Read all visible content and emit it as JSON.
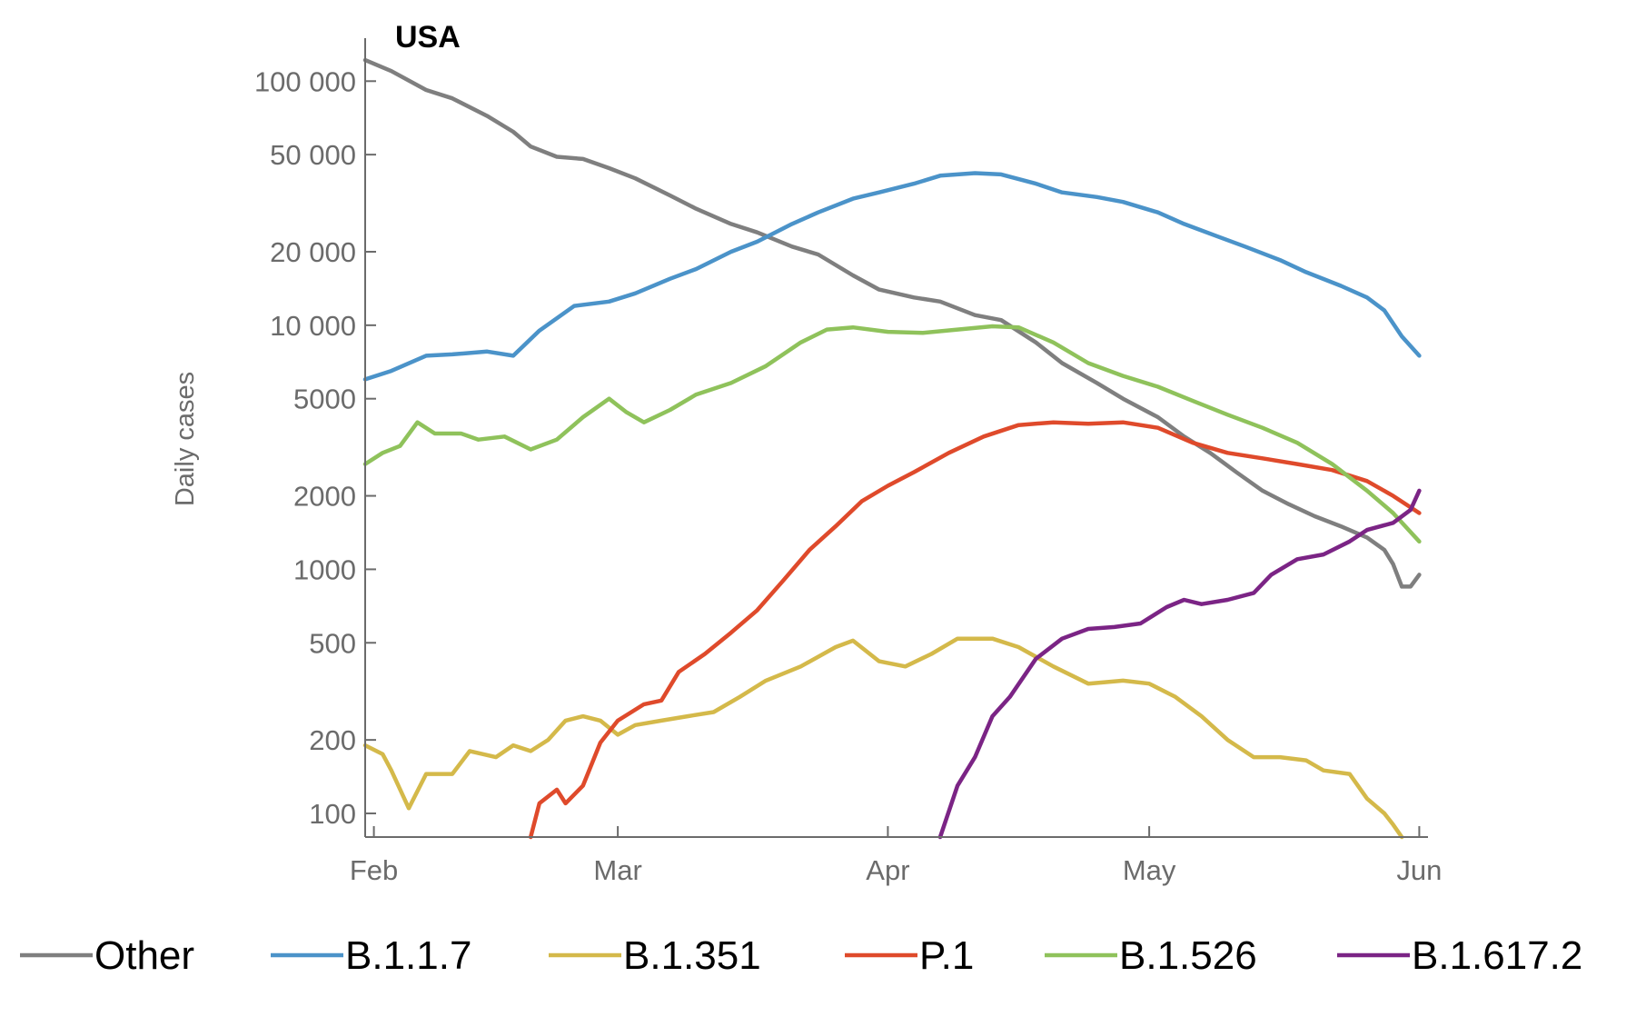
{
  "chart_data": {
    "type": "line",
    "title": "USA",
    "xlabel": "",
    "ylabel": "Daily cases",
    "yscale": "log",
    "ylim": [
      80,
      150000
    ],
    "xlim": [
      "2021-01-31",
      "2021-06-02"
    ],
    "grid": false,
    "legend": "bottom",
    "x_ticks": [
      {
        "date": "2021-02-01",
        "label": "Feb"
      },
      {
        "date": "2021-03-01",
        "label": "Mar"
      },
      {
        "date": "2021-04-01",
        "label": "Apr"
      },
      {
        "date": "2021-05-01",
        "label": "May"
      },
      {
        "date": "2021-06-01",
        "label": "Jun"
      }
    ],
    "y_ticks": [
      {
        "value": 100,
        "label": "100"
      },
      {
        "value": 200,
        "label": "200"
      },
      {
        "value": 500,
        "label": "500"
      },
      {
        "value": 1000,
        "label": "1000"
      },
      {
        "value": 2000,
        "label": "2000"
      },
      {
        "value": 5000,
        "label": "5000"
      },
      {
        "value": 10000,
        "label": "10 000"
      },
      {
        "value": 20000,
        "label": "20 000"
      },
      {
        "value": 50000,
        "label": "50 000"
      },
      {
        "value": 100000,
        "label": "100 000"
      }
    ],
    "series": [
      {
        "name": "Other",
        "color": "#7f7f7f",
        "points": [
          [
            "2021-01-31",
            122000
          ],
          [
            "2021-02-03",
            110000
          ],
          [
            "2021-02-07",
            92000
          ],
          [
            "2021-02-10",
            85000
          ],
          [
            "2021-02-14",
            72000
          ],
          [
            "2021-02-17",
            62000
          ],
          [
            "2021-02-19",
            54000
          ],
          [
            "2021-02-22",
            49000
          ],
          [
            "2021-02-25",
            48000
          ],
          [
            "2021-02-28",
            44000
          ],
          [
            "2021-03-03",
            40000
          ],
          [
            "2021-03-07",
            34000
          ],
          [
            "2021-03-10",
            30000
          ],
          [
            "2021-03-14",
            26000
          ],
          [
            "2021-03-17",
            24000
          ],
          [
            "2021-03-21",
            21000
          ],
          [
            "2021-03-24",
            19500
          ],
          [
            "2021-03-28",
            16000
          ],
          [
            "2021-03-31",
            14000
          ],
          [
            "2021-04-04",
            13000
          ],
          [
            "2021-04-07",
            12500
          ],
          [
            "2021-04-11",
            11000
          ],
          [
            "2021-04-14",
            10500
          ],
          [
            "2021-04-18",
            8500
          ],
          [
            "2021-04-21",
            7000
          ],
          [
            "2021-04-25",
            5800
          ],
          [
            "2021-04-28",
            5000
          ],
          [
            "2021-05-02",
            4200
          ],
          [
            "2021-05-05",
            3500
          ],
          [
            "2021-05-08",
            3000
          ],
          [
            "2021-05-11",
            2500
          ],
          [
            "2021-05-14",
            2100
          ],
          [
            "2021-05-17",
            1850
          ],
          [
            "2021-05-20",
            1650
          ],
          [
            "2021-05-23",
            1500
          ],
          [
            "2021-05-26",
            1350
          ],
          [
            "2021-05-28",
            1200
          ],
          [
            "2021-05-29",
            1050
          ],
          [
            "2021-05-30",
            850
          ],
          [
            "2021-05-31",
            850
          ],
          [
            "2021-06-01",
            950
          ]
        ]
      },
      {
        "name": "B.1.1.7",
        "color": "#4b93c9",
        "points": [
          [
            "2021-01-31",
            6000
          ],
          [
            "2021-02-03",
            6500
          ],
          [
            "2021-02-07",
            7500
          ],
          [
            "2021-02-10",
            7600
          ],
          [
            "2021-02-14",
            7800
          ],
          [
            "2021-02-17",
            7500
          ],
          [
            "2021-02-20",
            9500
          ],
          [
            "2021-02-24",
            12000
          ],
          [
            "2021-02-28",
            12500
          ],
          [
            "2021-03-03",
            13500
          ],
          [
            "2021-03-07",
            15500
          ],
          [
            "2021-03-10",
            17000
          ],
          [
            "2021-03-14",
            20000
          ],
          [
            "2021-03-17",
            22000
          ],
          [
            "2021-03-21",
            26000
          ],
          [
            "2021-03-24",
            29000
          ],
          [
            "2021-03-28",
            33000
          ],
          [
            "2021-03-31",
            35000
          ],
          [
            "2021-04-04",
            38000
          ],
          [
            "2021-04-07",
            41000
          ],
          [
            "2021-04-11",
            42000
          ],
          [
            "2021-04-14",
            41500
          ],
          [
            "2021-04-18",
            38000
          ],
          [
            "2021-04-21",
            35000
          ],
          [
            "2021-04-25",
            33500
          ],
          [
            "2021-04-28",
            32000
          ],
          [
            "2021-05-02",
            29000
          ],
          [
            "2021-05-05",
            26000
          ],
          [
            "2021-05-09",
            23000
          ],
          [
            "2021-05-12",
            21000
          ],
          [
            "2021-05-16",
            18500
          ],
          [
            "2021-05-19",
            16500
          ],
          [
            "2021-05-23",
            14500
          ],
          [
            "2021-05-26",
            13000
          ],
          [
            "2021-05-28",
            11500
          ],
          [
            "2021-05-30",
            9000
          ],
          [
            "2021-06-01",
            7500
          ]
        ]
      },
      {
        "name": "B.1.351",
        "color": "#d4b94a",
        "points": [
          [
            "2021-01-31",
            190
          ],
          [
            "2021-02-02",
            175
          ],
          [
            "2021-02-03",
            150
          ],
          [
            "2021-02-05",
            105
          ],
          [
            "2021-02-07",
            145
          ],
          [
            "2021-02-10",
            145
          ],
          [
            "2021-02-12",
            180
          ],
          [
            "2021-02-15",
            170
          ],
          [
            "2021-02-17",
            190
          ],
          [
            "2021-02-19",
            180
          ],
          [
            "2021-02-21",
            200
          ],
          [
            "2021-02-23",
            240
          ],
          [
            "2021-02-25",
            250
          ],
          [
            "2021-02-27",
            240
          ],
          [
            "2021-03-01",
            210
          ],
          [
            "2021-03-03",
            230
          ],
          [
            "2021-03-06",
            240
          ],
          [
            "2021-03-09",
            250
          ],
          [
            "2021-03-12",
            260
          ],
          [
            "2021-03-15",
            300
          ],
          [
            "2021-03-18",
            350
          ],
          [
            "2021-03-22",
            400
          ],
          [
            "2021-03-26",
            480
          ],
          [
            "2021-03-28",
            510
          ],
          [
            "2021-03-31",
            420
          ],
          [
            "2021-04-03",
            400
          ],
          [
            "2021-04-06",
            450
          ],
          [
            "2021-04-09",
            520
          ],
          [
            "2021-04-13",
            520
          ],
          [
            "2021-04-16",
            480
          ],
          [
            "2021-04-20",
            400
          ],
          [
            "2021-04-24",
            340
          ],
          [
            "2021-04-28",
            350
          ],
          [
            "2021-05-01",
            340
          ],
          [
            "2021-05-04",
            300
          ],
          [
            "2021-05-07",
            250
          ],
          [
            "2021-05-10",
            200
          ],
          [
            "2021-05-13",
            170
          ],
          [
            "2021-05-16",
            170
          ],
          [
            "2021-05-19",
            165
          ],
          [
            "2021-05-21",
            150
          ],
          [
            "2021-05-24",
            145
          ],
          [
            "2021-05-26",
            115
          ],
          [
            "2021-05-28",
            100
          ],
          [
            "2021-05-29",
            90
          ],
          [
            "2021-05-30",
            80
          ]
        ]
      },
      {
        "name": "P.1",
        "color": "#df4a2b",
        "points": [
          [
            "2021-02-19",
            80
          ],
          [
            "2021-02-20",
            110
          ],
          [
            "2021-02-22",
            125
          ],
          [
            "2021-02-23",
            110
          ],
          [
            "2021-02-25",
            130
          ],
          [
            "2021-02-27",
            195
          ],
          [
            "2021-03-01",
            240
          ],
          [
            "2021-03-04",
            280
          ],
          [
            "2021-03-06",
            290
          ],
          [
            "2021-03-08",
            380
          ],
          [
            "2021-03-11",
            450
          ],
          [
            "2021-03-14",
            550
          ],
          [
            "2021-03-17",
            680
          ],
          [
            "2021-03-20",
            900
          ],
          [
            "2021-03-23",
            1200
          ],
          [
            "2021-03-26",
            1500
          ],
          [
            "2021-03-29",
            1900
          ],
          [
            "2021-04-01",
            2200
          ],
          [
            "2021-04-04",
            2500
          ],
          [
            "2021-04-08",
            3000
          ],
          [
            "2021-04-12",
            3500
          ],
          [
            "2021-04-16",
            3900
          ],
          [
            "2021-04-20",
            4000
          ],
          [
            "2021-04-24",
            3950
          ],
          [
            "2021-04-28",
            4000
          ],
          [
            "2021-05-02",
            3800
          ],
          [
            "2021-05-06",
            3300
          ],
          [
            "2021-05-10",
            3000
          ],
          [
            "2021-05-14",
            2850
          ],
          [
            "2021-05-18",
            2700
          ],
          [
            "2021-05-22",
            2550
          ],
          [
            "2021-05-26",
            2300
          ],
          [
            "2021-05-29",
            2000
          ],
          [
            "2021-06-01",
            1700
          ]
        ]
      },
      {
        "name": "B.1.526",
        "color": "#8fc25b",
        "points": [
          [
            "2021-01-31",
            2700
          ],
          [
            "2021-02-02",
            3000
          ],
          [
            "2021-02-04",
            3200
          ],
          [
            "2021-02-06",
            4000
          ],
          [
            "2021-02-08",
            3600
          ],
          [
            "2021-02-11",
            3600
          ],
          [
            "2021-02-13",
            3400
          ],
          [
            "2021-02-16",
            3500
          ],
          [
            "2021-02-19",
            3100
          ],
          [
            "2021-02-22",
            3400
          ],
          [
            "2021-02-25",
            4200
          ],
          [
            "2021-02-28",
            5000
          ],
          [
            "2021-03-02",
            4400
          ],
          [
            "2021-03-04",
            4000
          ],
          [
            "2021-03-07",
            4500
          ],
          [
            "2021-03-10",
            5200
          ],
          [
            "2021-03-14",
            5800
          ],
          [
            "2021-03-18",
            6800
          ],
          [
            "2021-03-22",
            8500
          ],
          [
            "2021-03-25",
            9600
          ],
          [
            "2021-03-28",
            9800
          ],
          [
            "2021-04-01",
            9400
          ],
          [
            "2021-04-05",
            9300
          ],
          [
            "2021-04-09",
            9600
          ],
          [
            "2021-04-13",
            9900
          ],
          [
            "2021-04-16",
            9800
          ],
          [
            "2021-04-20",
            8500
          ],
          [
            "2021-04-24",
            7000
          ],
          [
            "2021-04-28",
            6200
          ],
          [
            "2021-05-02",
            5600
          ],
          [
            "2021-05-06",
            4900
          ],
          [
            "2021-05-10",
            4300
          ],
          [
            "2021-05-14",
            3800
          ],
          [
            "2021-05-18",
            3300
          ],
          [
            "2021-05-22",
            2700
          ],
          [
            "2021-05-26",
            2100
          ],
          [
            "2021-05-29",
            1700
          ],
          [
            "2021-06-01",
            1300
          ]
        ]
      },
      {
        "name": "B.1.617.2",
        "color": "#7b2485",
        "points": [
          [
            "2021-04-07",
            80
          ],
          [
            "2021-04-09",
            130
          ],
          [
            "2021-04-11",
            170
          ],
          [
            "2021-04-13",
            250
          ],
          [
            "2021-04-15",
            300
          ],
          [
            "2021-04-18",
            430
          ],
          [
            "2021-04-21",
            520
          ],
          [
            "2021-04-24",
            570
          ],
          [
            "2021-04-27",
            580
          ],
          [
            "2021-04-30",
            600
          ],
          [
            "2021-05-03",
            700
          ],
          [
            "2021-05-05",
            750
          ],
          [
            "2021-05-07",
            720
          ],
          [
            "2021-05-10",
            750
          ],
          [
            "2021-05-13",
            800
          ],
          [
            "2021-05-15",
            950
          ],
          [
            "2021-05-18",
            1100
          ],
          [
            "2021-05-21",
            1150
          ],
          [
            "2021-05-24",
            1300
          ],
          [
            "2021-05-26",
            1450
          ],
          [
            "2021-05-29",
            1550
          ],
          [
            "2021-05-31",
            1750
          ],
          [
            "2021-06-01",
            2100
          ]
        ]
      }
    ]
  }
}
